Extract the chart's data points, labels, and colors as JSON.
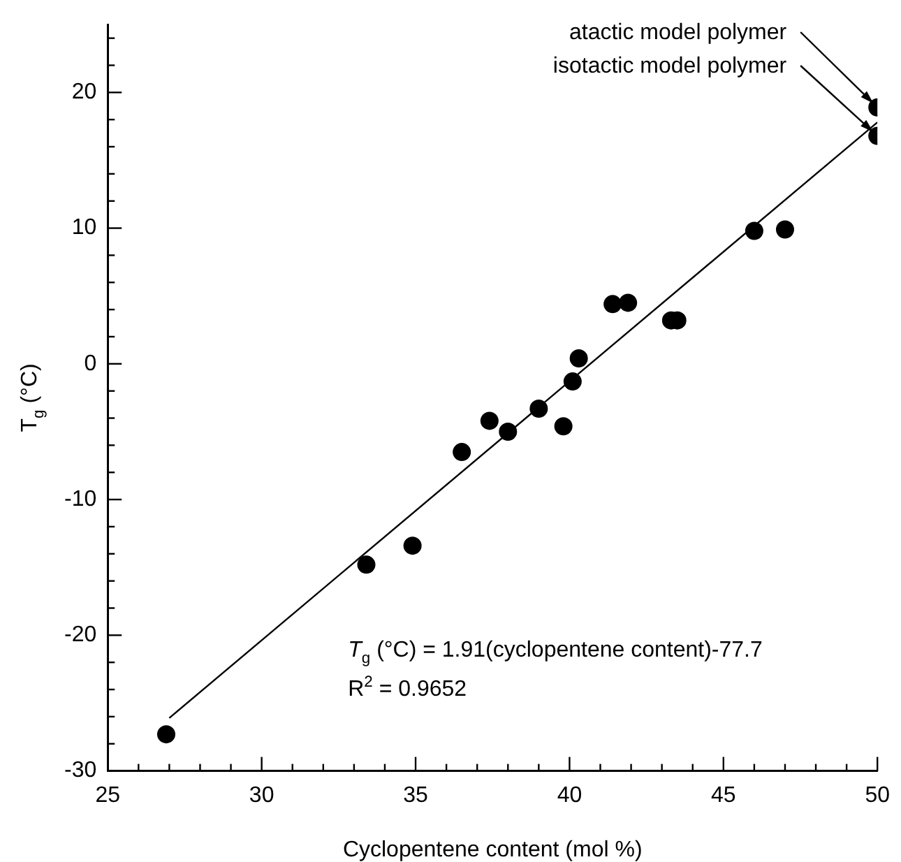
{
  "chart_data": {
    "type": "scatter",
    "xlabel": "Cyclopentene content (mol %)",
    "ylabel": "T$_{g}$ (°C)",
    "xlim": [
      25,
      50
    ],
    "ylim": [
      -30,
      25
    ],
    "xticks": [
      25,
      {
        "value": 26,
        "label": null
      },
      {
        "value": 27,
        "label": null
      },
      {
        "value": 28,
        "label": null
      },
      {
        "value": 29,
        "label": null
      },
      30,
      {
        "value": 31,
        "label": null
      },
      {
        "value": 32,
        "label": null
      },
      {
        "value": 33,
        "label": null
      },
      {
        "value": 34,
        "label": null
      },
      35,
      {
        "value": 36,
        "label": null
      },
      {
        "value": 37,
        "label": null
      },
      {
        "value": 38,
        "label": null
      },
      {
        "value": 39,
        "label": null
      },
      40,
      {
        "value": 41,
        "label": null
      },
      {
        "value": 42,
        "label": null
      },
      {
        "value": 43,
        "label": null
      },
      {
        "value": 44,
        "label": null
      },
      45,
      {
        "value": 46,
        "label": null
      },
      {
        "value": 47,
        "label": null
      },
      {
        "value": 48,
        "label": null
      },
      {
        "value": 49,
        "label": null
      },
      50
    ],
    "yticks": [
      -30,
      {
        "value": -28,
        "label": null
      },
      {
        "value": -26,
        "label": null
      },
      {
        "value": -24,
        "label": null
      },
      {
        "value": -22,
        "label": null
      },
      -20,
      {
        "value": -18,
        "label": null
      },
      {
        "value": -16,
        "label": null
      },
      {
        "value": -14,
        "label": null
      },
      {
        "value": -12,
        "label": null
      },
      -10,
      {
        "value": -8,
        "label": null
      },
      {
        "value": -6,
        "label": null
      },
      {
        "value": -4,
        "label": null
      },
      {
        "value": -2,
        "label": null
      },
      0,
      {
        "value": 2,
        "label": null
      },
      {
        "value": 4,
        "label": null
      },
      {
        "value": 6,
        "label": null
      },
      {
        "value": 8,
        "label": null
      },
      10,
      {
        "value": 12,
        "label": null
      },
      {
        "value": 14,
        "label": null
      },
      {
        "value": 16,
        "label": null
      },
      {
        "value": 18,
        "label": null
      },
      20,
      {
        "value": 22,
        "label": null
      },
      {
        "value": 24,
        "label": null
      }
    ],
    "grid": false,
    "legend": false,
    "marker": "circle",
    "series": [
      {
        "type": "scatter",
        "color": "#000000",
        "x": [
          26.9,
          33.4,
          34.9,
          36.5,
          37.4,
          38.0,
          39.0,
          39.8,
          40.1,
          40.3,
          41.4,
          41.9,
          43.3,
          43.5,
          46.0,
          47.0,
          50.0,
          50.0
        ],
        "values": [
          -27.3,
          -14.8,
          -13.4,
          -6.5,
          -4.2,
          -5.0,
          -3.3,
          -4.6,
          -1.3,
          0.4,
          4.4,
          4.5,
          3.2,
          3.2,
          9.8,
          9.9,
          16.8,
          18.9
        ]
      },
      {
        "type": "line",
        "color": "#000000",
        "marker": "none",
        "line_style": "solid",
        "x": [
          27,
          50
        ],
        "values": [
          -26.1,
          17.8
        ]
      }
    ],
    "annotations": [
      {
        "text": "atactic model polymer",
        "x": 50,
        "y": 18.9
      },
      {
        "text": "isotactic model polymer",
        "x": 50,
        "y": 16.8
      },
      "T$_{g}$ (°C) = 1.91(cyclopentene content)-77.7",
      "R$^{2}$ = 0.9652"
    ]
  }
}
